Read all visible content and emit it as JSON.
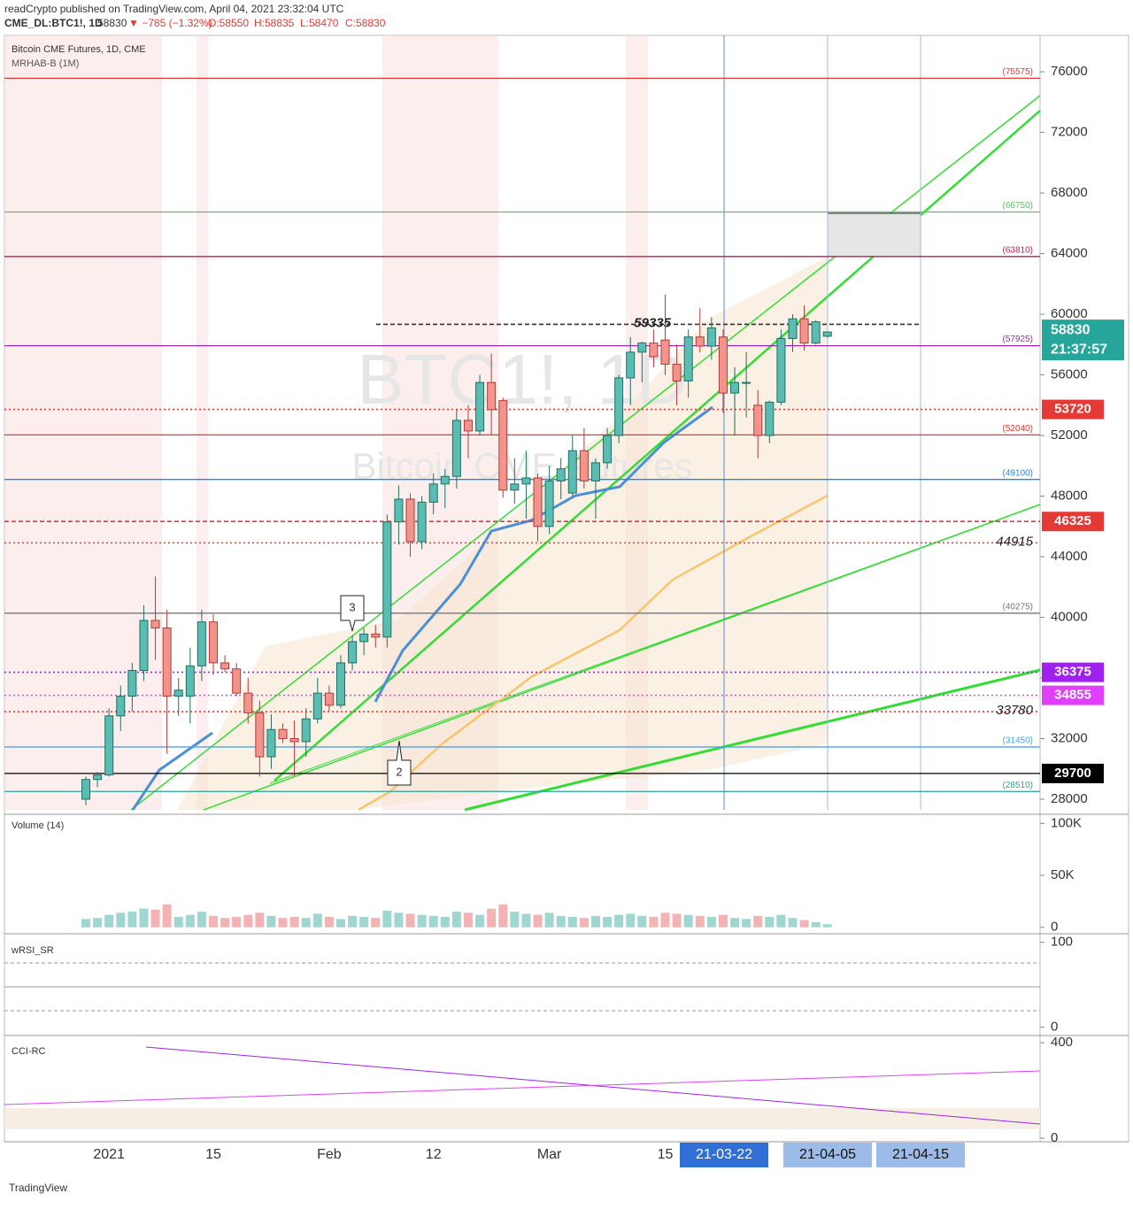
{
  "chart_data": {
    "type": "candlestick",
    "publisher_line": "readCrypto published on TradingView.com, April 04, 2021 23:32:04 UTC",
    "symbol": "CME_DL:BTC1!, 1D",
    "last": "58830",
    "change": "▼ −785 (−1.32%)",
    "ohlc_open": "O:58550",
    "ohlc_high": "H:58835",
    "ohlc_low": "L:58470",
    "ohlc_close": "C:58830",
    "title": "Bitcoin CME Futures, 1D, CME",
    "indicator": "MRHAB-B (1M)",
    "watermark_symbol": "BTC1!, 1D",
    "watermark_name": "Bitcoin CME Futures",
    "price_tag": {
      "value": 58830,
      "label": "58830"
    },
    "countdown": "21:37:57",
    "up_color": "#5bbcb2",
    "down_color": "#f2938c",
    "categories": [
      null,
      null,
      "2021",
      null,
      null,
      null,
      null,
      null,
      null,
      null,
      null,
      "15",
      null,
      null,
      null,
      null,
      null,
      null,
      null,
      null,
      null,
      "Feb",
      null,
      null,
      null,
      null,
      null,
      null,
      null,
      null,
      "12",
      null,
      null,
      null,
      null,
      null,
      null,
      null,
      null,
      null,
      "Mar",
      null,
      null,
      null,
      null,
      null,
      null,
      null,
      null,
      null,
      "15",
      null,
      null,
      null,
      null,
      null,
      null,
      null,
      null,
      null,
      null,
      null,
      null,
      null,
      null
    ],
    "open": [
      28000,
      29300,
      29600,
      33500,
      34800,
      36500,
      39800,
      39300,
      34800,
      34800,
      36800,
      39700,
      37000,
      36600,
      35000,
      33700,
      30800,
      32600,
      32000,
      31800,
      33300,
      35000,
      34200,
      37000,
      38400,
      38900,
      38700,
      46300,
      47800,
      45000,
      47600,
      48800,
      49300,
      53000,
      52300,
      55500,
      54300,
      48400,
      48800,
      49200,
      46000,
      49000,
      48200,
      51000,
      49000,
      50200,
      52000,
      55800,
      57500,
      58100,
      58300,
      56700,
      55600,
      58500,
      57900,
      58500,
      54800,
      55500,
      54000,
      52000,
      54200,
      58400,
      59700,
      58100,
      58550
    ],
    "high": [
      29500,
      29800,
      34000,
      35500,
      37000,
      40800,
      42700,
      40500,
      36000,
      38000,
      40500,
      40200,
      37500,
      37000,
      36000,
      34500,
      33600,
      33000,
      33200,
      34000,
      36000,
      35500,
      37500,
      38800,
      39300,
      39500,
      46800,
      48700,
      48200,
      48000,
      49500,
      49800,
      53700,
      54000,
      56000,
      57400,
      54500,
      50500,
      51000,
      49500,
      50000,
      50500,
      52000,
      52500,
      50500,
      52500,
      56000,
      58500,
      58200,
      59000,
      61300,
      58000,
      59000,
      60400,
      59800,
      59000,
      56500,
      57500,
      55000,
      54300,
      59000,
      60000,
      60600,
      59600,
      58835
    ],
    "low": [
      27600,
      28800,
      29500,
      32500,
      33800,
      35800,
      37200,
      31000,
      33500,
      33000,
      35800,
      36200,
      36400,
      34800,
      33000,
      29500,
      30000,
      31700,
      29500,
      30800,
      33000,
      33800,
      34000,
      36500,
      37500,
      38000,
      38000,
      44800,
      44000,
      44500,
      46800,
      47200,
      48500,
      50500,
      52000,
      52000,
      47900,
      47500,
      46500,
      45000,
      45500,
      47800,
      48000,
      48500,
      46500,
      49800,
      51500,
      54000,
      55500,
      56500,
      56000,
      54000,
      54500,
      57500,
      57000,
      53500,
      52000,
      53200,
      50500,
      51500,
      54000,
      57500,
      57600,
      58000,
      58470
    ],
    "close": [
      29300,
      29600,
      33500,
      34800,
      36500,
      39800,
      39300,
      34800,
      35200,
      36800,
      39700,
      37000,
      36600,
      35000,
      33700,
      30800,
      32600,
      32000,
      31800,
      33300,
      35000,
      34200,
      37000,
      38400,
      38900,
      38700,
      46300,
      47800,
      45000,
      47600,
      48800,
      49300,
      53000,
      52300,
      55500,
      53700,
      48400,
      48800,
      49200,
      46000,
      49000,
      49800,
      51000,
      49000,
      50200,
      52000,
      55800,
      57500,
      58100,
      57200,
      56700,
      55600,
      58500,
      57900,
      59100,
      54800,
      55500,
      55500,
      52000,
      54200,
      58400,
      59700,
      58100,
      59500,
      58830
    ],
    "ylim": [
      27300,
      78400
    ],
    "yticks": [
      28000,
      32000,
      36000,
      40000,
      44000,
      48000,
      52000,
      56000,
      60000,
      64000,
      68000,
      72000,
      76000
    ],
    "levels": [
      {
        "value": 75575,
        "label": "(75575)",
        "color": "#e53935",
        "style": "solid",
        "tag": "note"
      },
      {
        "value": 66750,
        "label": "(66750)",
        "color": "#66bb6a",
        "style": "solid",
        "tag": "note"
      },
      {
        "value": 63810,
        "label": "(63810)",
        "color": "#c2185b",
        "style": "solid",
        "tag": "note"
      },
      {
        "value": 59335,
        "label": "59335",
        "color": "#333333",
        "style": "dashed",
        "tag": "italic"
      },
      {
        "value": 57925,
        "label": "(57925)",
        "color": "#9c27b0",
        "style": "solid",
        "tag": "note"
      },
      {
        "value": 53720,
        "label": "53720",
        "color": "#e53935",
        "style": "dotted",
        "tag": "box"
      },
      {
        "value": 52040,
        "label": "(52040)",
        "color": "#e53935",
        "style": "solid",
        "tag": "note"
      },
      {
        "value": 49100,
        "label": "(49100)",
        "color": "#1e88e5",
        "style": "solid",
        "tag": "note"
      },
      {
        "value": 46325,
        "label": "46325",
        "color": "#e53935",
        "style": "dashed",
        "tag": "box"
      },
      {
        "value": 44915,
        "label": "44915",
        "color": "#e53935",
        "style": "dotted",
        "tag": "italic"
      },
      {
        "value": 40275,
        "label": "(40275)",
        "color": "#777777",
        "style": "solid",
        "tag": "note"
      },
      {
        "value": 36375,
        "label": "36375",
        "color": "#a020f0",
        "style": "dotted",
        "tag": "box"
      },
      {
        "value": 34855,
        "label": "34855",
        "color": "#e040fb",
        "style": "dotted",
        "tag": "box"
      },
      {
        "value": 33780,
        "label": "33780",
        "color": "#e53935",
        "style": "dotted",
        "tag": "italic"
      },
      {
        "value": 31450,
        "label": "(31450)",
        "color": "#42a5f5",
        "style": "solid",
        "tag": "note"
      },
      {
        "value": 29700,
        "label": "29700",
        "color": "#000000",
        "style": "solid",
        "tag": "box"
      },
      {
        "value": 28510,
        "label": "(28510)",
        "color": "#26a69a",
        "style": "solid",
        "tag": "note"
      }
    ],
    "wave_labels": [
      "3",
      "2"
    ],
    "date_markers": [
      "21-03-22",
      "21-04-05",
      "21-04-15"
    ],
    "volume": {
      "title": "Volume (14)",
      "values": [
        8000,
        9000,
        12000,
        14000,
        15000,
        18000,
        17000,
        22000,
        10000,
        12000,
        15000,
        11000,
        9000,
        10000,
        12000,
        14000,
        11000,
        9000,
        10000,
        9000,
        13000,
        10000,
        8000,
        11000,
        10000,
        9000,
        16000,
        14000,
        13000,
        12000,
        11000,
        10000,
        15000,
        14000,
        12000,
        18000,
        22000,
        15000,
        13000,
        12000,
        14000,
        11000,
        10000,
        9000,
        11000,
        10000,
        12000,
        13000,
        11000,
        10000,
        14000,
        13000,
        12000,
        11000,
        10000,
        12000,
        9000,
        8000,
        11000,
        10000,
        12000,
        9000,
        7000,
        5000,
        3000
      ],
      "ylim": [
        -6200,
        108800
      ],
      "yticks": [
        {
          "value": 0,
          "label": "0"
        },
        {
          "value": 50000,
          "label": "50K"
        },
        {
          "value": 100000,
          "label": "100K"
        }
      ]
    },
    "rsi": {
      "title": "wRSI_SR",
      "ylim": [
        -10,
        110
      ],
      "yticks": [
        0,
        100
      ]
    },
    "cci": {
      "title": "CCI-RC",
      "ylim": [
        -15,
        430
      ],
      "yticks": [
        0,
        400
      ]
    },
    "footer": "TradingView"
  }
}
